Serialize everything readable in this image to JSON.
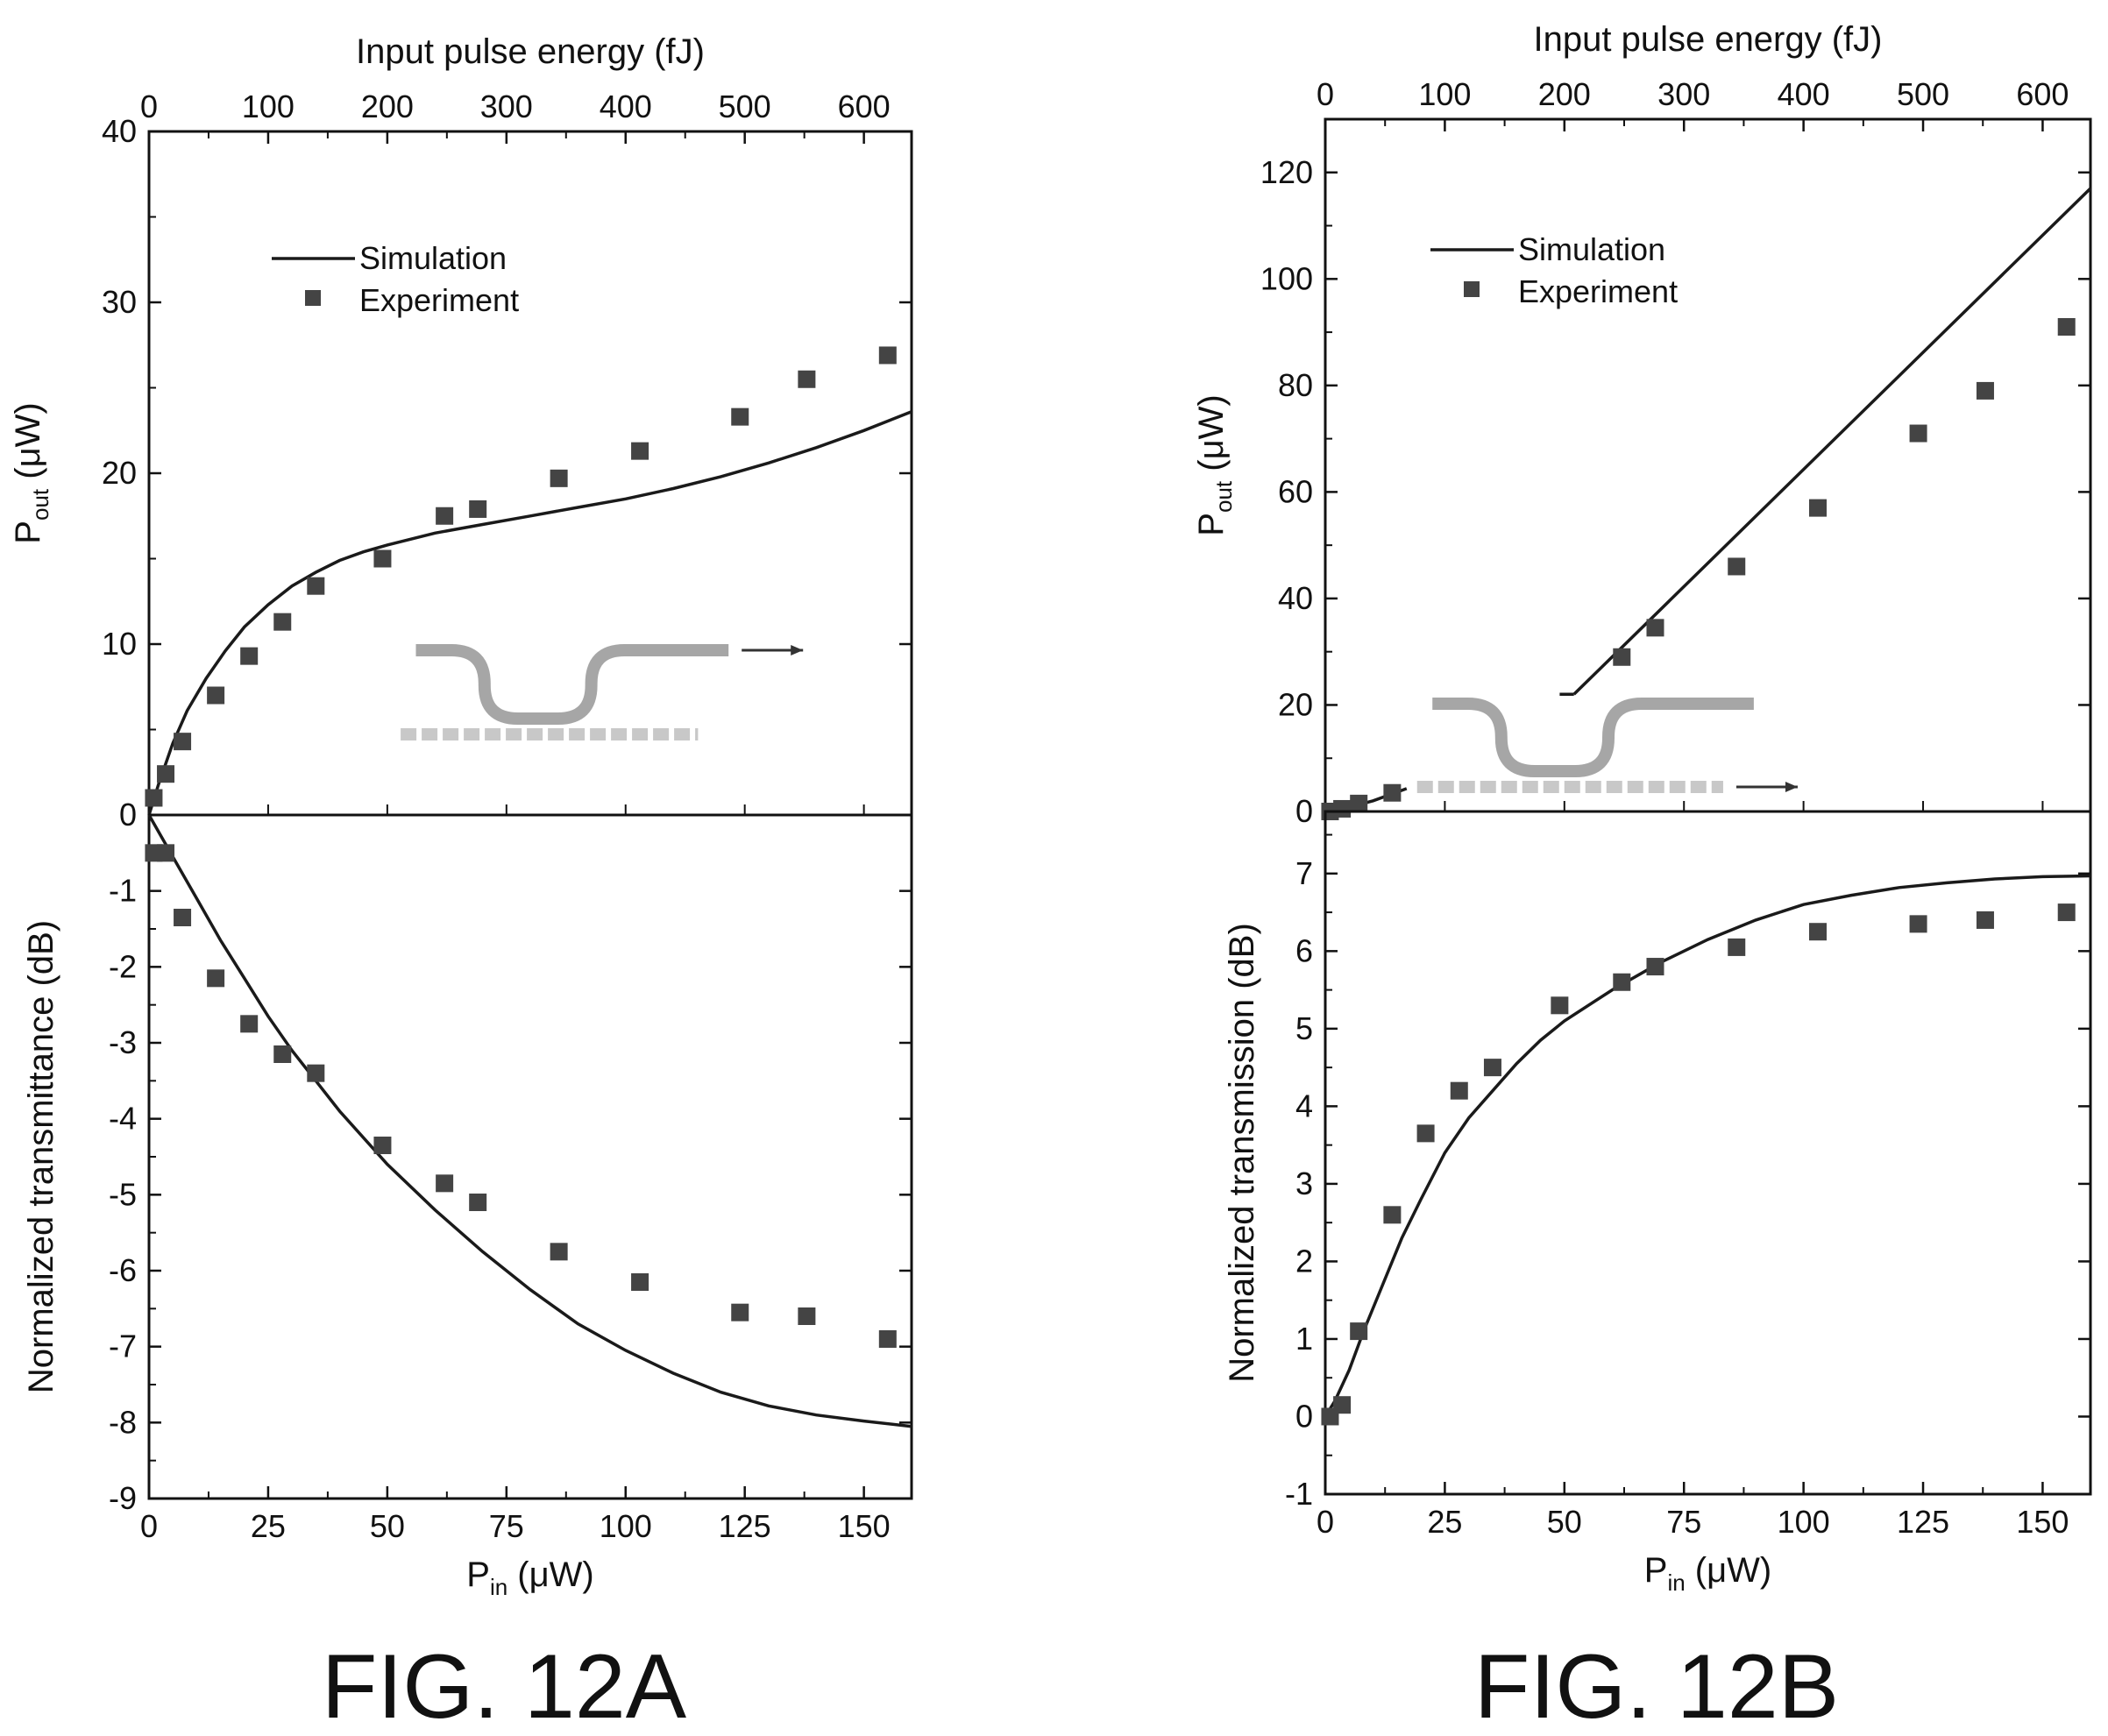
{
  "colors": {
    "frame": "#111111",
    "sim_line": "#1a1a1a",
    "marker": "#444444",
    "waveguide": "#a6a6a6",
    "waveguide_dash": "#c8c8c8"
  },
  "captions": [
    "FIG. 12A",
    "FIG. 12B"
  ],
  "chart_data": [
    {
      "id": "12A-top",
      "type": "scatter",
      "figure": "FIG. 12A",
      "title": "",
      "xlabel_top": "Input pulse energy (fJ)",
      "ylabel": {
        "main": "P",
        "sub": "out",
        "unit": " (μW)"
      },
      "x_top_ticks": [
        0,
        100,
        200,
        300,
        400,
        500,
        600
      ],
      "xlim_top": [
        0,
        640
      ],
      "xlim": [
        0,
        160
      ],
      "ylim": [
        0,
        40
      ],
      "y_ticks": [
        0,
        10,
        20,
        30,
        40
      ],
      "legend": {
        "position": "upper-left",
        "entries": [
          "Simulation",
          "Experiment"
        ]
      },
      "inset": "device schematic, output arrow on upper curved waveguide",
      "series": [
        {
          "name": "Simulation",
          "kind": "line",
          "x": [
            0,
            2,
            5,
            8,
            12,
            16,
            20,
            25,
            30,
            35,
            40,
            45,
            50,
            60,
            70,
            80,
            90,
            100,
            110,
            120,
            130,
            140,
            150,
            160
          ],
          "y": [
            0,
            1.8,
            4.2,
            6.1,
            8.0,
            9.6,
            11.0,
            12.3,
            13.4,
            14.2,
            14.9,
            15.4,
            15.8,
            16.5,
            17.0,
            17.5,
            18.0,
            18.5,
            19.1,
            19.8,
            20.6,
            21.5,
            22.5,
            23.6
          ]
        },
        {
          "name": "Experiment",
          "kind": "marker",
          "x": [
            1,
            3.5,
            7,
            14,
            21,
            28,
            35,
            49,
            62,
            69,
            86,
            103,
            124,
            138,
            155
          ],
          "y": [
            1.0,
            2.4,
            4.3,
            7.0,
            9.3,
            11.3,
            13.4,
            15.0,
            17.5,
            17.9,
            19.7,
            21.3,
            23.3,
            25.5,
            26.9
          ]
        }
      ]
    },
    {
      "id": "12A-bottom",
      "type": "scatter",
      "figure": "FIG. 12A",
      "title": "",
      "xlabel": {
        "main": "P",
        "sub": "in",
        "unit": " (μW)"
      },
      "ylabel": "Normalized transmittance (dB)",
      "xlim": [
        0,
        160
      ],
      "x_ticks": [
        0,
        25,
        50,
        75,
        100,
        125,
        150
      ],
      "ylim": [
        -9,
        0
      ],
      "y_ticks": [
        -9,
        -8,
        -7,
        -6,
        -5,
        -4,
        -3,
        -2,
        -1,
        0
      ],
      "series": [
        {
          "name": "Simulation",
          "kind": "line",
          "x": [
            0,
            5,
            10,
            15,
            20,
            25,
            30,
            35,
            40,
            50,
            60,
            70,
            80,
            90,
            100,
            110,
            120,
            130,
            140,
            150,
            160
          ],
          "y": [
            0,
            -0.55,
            -1.1,
            -1.65,
            -2.15,
            -2.65,
            -3.1,
            -3.5,
            -3.9,
            -4.6,
            -5.2,
            -5.75,
            -6.25,
            -6.7,
            -7.05,
            -7.35,
            -7.6,
            -7.78,
            -7.9,
            -7.98,
            -8.05
          ]
        },
        {
          "name": "Experiment",
          "kind": "marker",
          "x": [
            1,
            3.5,
            7,
            14,
            21,
            28,
            35,
            49,
            62,
            69,
            86,
            103,
            124,
            138,
            155
          ],
          "y": [
            -0.5,
            -0.5,
            -1.35,
            -2.15,
            -2.75,
            -3.15,
            -3.4,
            -4.35,
            -4.85,
            -5.1,
            -5.75,
            -6.15,
            -6.55,
            -6.6,
            -6.9
          ]
        }
      ]
    },
    {
      "id": "12B-top",
      "type": "scatter",
      "figure": "FIG. 12B",
      "title": "",
      "xlabel_top": "Input pulse energy (fJ)",
      "ylabel": {
        "main": "P",
        "sub": "out",
        "unit": " (μW)"
      },
      "x_top_ticks": [
        0,
        100,
        200,
        300,
        400,
        500,
        600
      ],
      "xlim_top": [
        0,
        640
      ],
      "xlim": [
        0,
        160
      ],
      "ylim": [
        0,
        130
      ],
      "y_ticks": [
        0,
        20,
        40,
        60,
        80,
        100,
        120
      ],
      "legend": {
        "position": "upper-left",
        "entries": [
          "Simulation",
          "Experiment"
        ]
      },
      "inset": "device schematic, output arrow on lower dashed waveguide",
      "series": [
        {
          "name": "Simulation",
          "kind": "line",
          "segments": [
            {
              "x": [
                0,
                5,
                10,
                17
              ],
              "y": [
                0,
                0.8,
                2.0,
                4.3
              ]
            },
            {
              "x": [
                49,
                52
              ],
              "y": [
                22,
                22
              ]
            },
            {
              "x": [
                52,
                160
              ],
              "y": [
                22,
                117
              ]
            }
          ]
        },
        {
          "name": "Experiment",
          "kind": "marker",
          "x": [
            1,
            3.5,
            7,
            14,
            62,
            69,
            86,
            103,
            124,
            138,
            155
          ],
          "y": [
            0,
            0.5,
            1.5,
            3.5,
            29,
            34.5,
            46,
            57,
            71,
            79,
            91
          ]
        }
      ]
    },
    {
      "id": "12B-bottom",
      "type": "scatter",
      "figure": "FIG. 12B",
      "title": "",
      "xlabel": {
        "main": "P",
        "sub": "in",
        "unit": " (μW)"
      },
      "ylabel": "Normalized transmission (dB)",
      "xlim": [
        0,
        160
      ],
      "x_ticks": [
        0,
        25,
        50,
        75,
        100,
        125,
        150
      ],
      "ylim": [
        -1,
        7.8
      ],
      "y_ticks": [
        -1,
        0,
        1,
        2,
        3,
        4,
        5,
        6,
        7
      ],
      "series": [
        {
          "name": "Simulation",
          "kind": "line",
          "x": [
            0,
            2,
            5,
            8,
            12,
            16,
            20,
            25,
            30,
            35,
            40,
            45,
            50,
            60,
            70,
            80,
            90,
            100,
            110,
            120,
            130,
            140,
            150,
            160
          ],
          "y": [
            0,
            0.2,
            0.6,
            1.1,
            1.7,
            2.3,
            2.8,
            3.4,
            3.85,
            4.2,
            4.55,
            4.85,
            5.1,
            5.5,
            5.85,
            6.15,
            6.4,
            6.6,
            6.72,
            6.82,
            6.88,
            6.93,
            6.96,
            6.97
          ]
        },
        {
          "name": "Experiment",
          "kind": "marker",
          "x": [
            1,
            3.5,
            7,
            14,
            21,
            28,
            35,
            49,
            62,
            69,
            86,
            103,
            124,
            138,
            155
          ],
          "y": [
            0,
            0.15,
            1.1,
            2.6,
            3.65,
            4.2,
            4.5,
            5.3,
            5.6,
            5.8,
            6.05,
            6.25,
            6.35,
            6.4,
            6.5
          ]
        }
      ]
    }
  ]
}
